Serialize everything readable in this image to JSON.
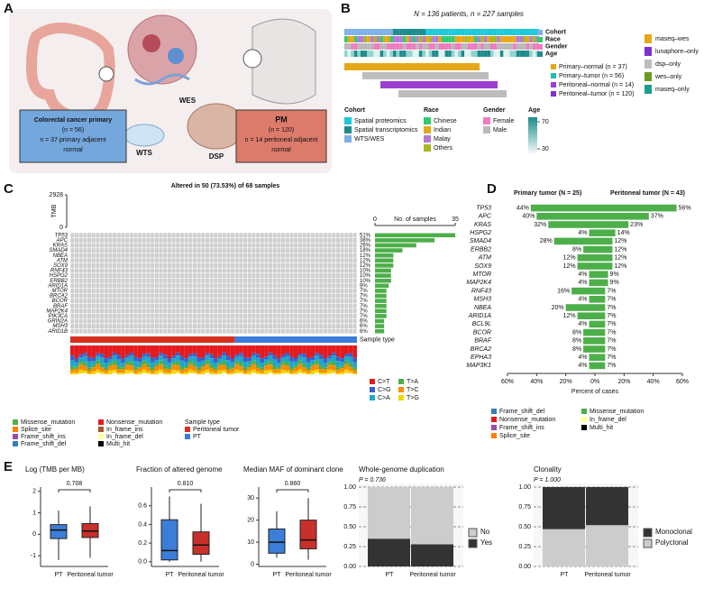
{
  "figure": {
    "A": {
      "label": "A",
      "wes": "WES",
      "wts": "WTS",
      "dsp": "DSP",
      "primary": [
        "Colorectal cancer primary",
        "(n = 56)",
        "n = 37 primary adjacent",
        "normal"
      ],
      "pm": [
        "PM",
        "(n = 120)",
        "n = 14 peritoneal adjacent",
        "normal"
      ]
    },
    "B": {
      "label": "B",
      "title": "N = 136 patients, n = 227 samples",
      "tracks": [
        "Cohort",
        "Race",
        "Gender",
        "Age"
      ],
      "groups": [
        {
          "name": "Primary–normal (n = 37)",
          "color": "#e6a817"
        },
        {
          "name": "Primary–tumor (n = 56)",
          "color": "#1cbfb0"
        },
        {
          "name": "Peritoneal–normal (n = 14)",
          "color": "#9b3fd1"
        },
        {
          "name": "Peritoneal–tumor (n = 120)",
          "color": "#7d2fd0"
        }
      ],
      "assays": [
        {
          "name": "maseq–wes",
          "color": "#e6a817"
        },
        {
          "name": "lunaphore–only",
          "color": "#7d2fd0"
        },
        {
          "name": "dsp–only",
          "color": "#bdbdbd"
        },
        {
          "name": "wes–only",
          "color": "#6e9a1f"
        },
        {
          "name": "maseq–only",
          "color": "#1b9e8f"
        }
      ],
      "legends": [
        {
          "title": "Cohort",
          "items": [
            {
              "name": "Spatial proteomics",
              "color": "#1cc9d9"
            },
            {
              "name": "Spatial transcriptomics",
              "color": "#1e8b8b"
            },
            {
              "name": "WTS/WES",
              "color": "#7fb0e8"
            }
          ]
        },
        {
          "title": "Race",
          "items": [
            {
              "name": "Chinese",
              "color": "#2ecc71"
            },
            {
              "name": "Indian",
              "color": "#e6a817"
            },
            {
              "name": "Malay",
              "color": "#b779d9"
            },
            {
              "name": "Others",
              "color": "#a8b820"
            }
          ]
        },
        {
          "title": "Gender",
          "items": [
            {
              "name": "Female",
              "color": "#f07cc0"
            },
            {
              "name": "Male",
              "color": "#b9b9b9"
            }
          ]
        }
      ],
      "age": {
        "title": "Age",
        "ticks": [
          70,
          30
        ]
      }
    },
    "C": {
      "label": "C",
      "title": "Altered in 50 (73.53%) of 68 samples",
      "tmb_label": "TMB",
      "tmb_ticks": [
        0,
        2928
      ],
      "genes": [
        "TP53",
        "APC",
        "KRAS",
        "SMAD4",
        "NBEA",
        "ATM",
        "SOX9",
        "RNF43",
        "HSPG2",
        "ERBB2",
        "ARID1A",
        "MTOR",
        "BRCA2",
        "BCOR",
        "BRAF",
        "MAP2K4",
        "PIK3CA",
        "GRIN2A",
        "MSH3",
        "ARID1B"
      ],
      "pct_labels": [
        "51%",
        "38%",
        "26%",
        "18%",
        "12%",
        "12%",
        "12%",
        "10%",
        "10%",
        "10%",
        "9%",
        "7%",
        "7%",
        "7%",
        "7%",
        "7%",
        "7%",
        "6%",
        "6%",
        "6%"
      ],
      "counts": [
        35,
        26,
        18,
        12,
        8,
        8,
        8,
        7,
        7,
        7,
        6,
        5,
        5,
        5,
        5,
        5,
        5,
        4,
        4,
        4
      ],
      "count_axis": {
        "title": "No. of samples",
        "ticks": [
          0,
          35
        ]
      },
      "sample_type_label": "Sample type",
      "substitutions": [
        {
          "name": "C>T",
          "color": "#e41a1c"
        },
        {
          "name": "C>G",
          "color": "#3a5fcd"
        },
        {
          "name": "C>A",
          "color": "#1fa6c9"
        },
        {
          "name": "T>A",
          "color": "#4daf4a"
        },
        {
          "name": "T>C",
          "color": "#ff8c00"
        },
        {
          "name": "T>G",
          "color": "#f2d600"
        }
      ],
      "mutation_types": [
        {
          "name": "Missense_mutation",
          "color": "#4daf4a"
        },
        {
          "name": "Splice_site",
          "color": "#ff7f00"
        },
        {
          "name": "Frame_shift_ins",
          "color": "#984ea3"
        },
        {
          "name": "Frame_shift_del",
          "color": "#377eb8"
        },
        {
          "name": "Nonsense_mutation",
          "color": "#e41a1c"
        },
        {
          "name": "In_frame_ins",
          "color": "#a65628"
        },
        {
          "name": "In_frame_del",
          "color": "#ffff99"
        },
        {
          "name": "Multi_hit",
          "color": "#000000"
        }
      ],
      "sample_types": {
        "title": "Sample type",
        "items": [
          {
            "name": "Peritoneal tumor",
            "color": "#d7301f"
          },
          {
            "name": "PT",
            "color": "#3b7dd8"
          }
        ]
      }
    },
    "D": {
      "type": "bar",
      "label": "D",
      "categories": [
        "TP53",
        "APC",
        "KRAS",
        "HSPG2",
        "SMAD4",
        "ERBB2",
        "ATM",
        "SOX9",
        "MTOR",
        "MAP2K4",
        "RNF43",
        "MSH3",
        "NBEA",
        "ARID1A",
        "BCL9L",
        "BCOR",
        "BRAF",
        "BRCA2",
        "EPHA3",
        "MAP3K1"
      ],
      "series": [
        {
          "name": "Primary tumor (N = 25)",
          "color": "#4daf4a",
          "values": [
            44,
            40,
            32,
            4,
            28,
            8,
            12,
            12,
            4,
            4,
            16,
            4,
            20,
            12,
            4,
            8,
            8,
            8,
            4,
            4
          ],
          "value_labels": [
            "44%",
            "40%",
            "32%",
            "4%",
            "28%",
            "8%",
            "12%",
            "12%",
            "4%",
            "4%",
            "16%",
            "4%",
            "20%",
            "12%",
            "4%",
            "8%",
            "8%",
            "8%",
            "4%",
            "4%"
          ]
        },
        {
          "name": "Peritoneal tumor (N = 43)",
          "color": "#4daf4a",
          "values": [
            56,
            37,
            23,
            14,
            12,
            12,
            12,
            12,
            9,
            9,
            7,
            7,
            7,
            7,
            7,
            7,
            7,
            7,
            7,
            7
          ],
          "value_labels": [
            "56%",
            "37%",
            "23%",
            "14%",
            "12%",
            "12%",
            "12%",
            "12%",
            "9%",
            "9%",
            "7%",
            "7%",
            "7%",
            "7%",
            "7%",
            "7%",
            "7%",
            "7%",
            "7%",
            "7%"
          ]
        }
      ],
      "xlabel": "Percent of cases",
      "xlim": [
        -60,
        60
      ],
      "xticks": [
        {
          "value": -60,
          "label": "60%"
        },
        {
          "value": -40,
          "label": "40%"
        },
        {
          "value": -20,
          "label": "20%"
        },
        {
          "value": 0,
          "label": "0%"
        },
        {
          "value": 20,
          "label": "20%"
        },
        {
          "value": 40,
          "label": "40%"
        },
        {
          "value": 60,
          "label": "60%"
        }
      ],
      "legend": [
        {
          "name": "Frame_shift_del",
          "color": "#377eb8"
        },
        {
          "name": "Nonsense_mutation",
          "color": "#e41a1c"
        },
        {
          "name": "Frame_shift_ins",
          "color": "#984ea3"
        },
        {
          "name": "Splice_site",
          "color": "#ff7f00"
        },
        {
          "name": "Missense_mutation",
          "color": "#4daf4a"
        },
        {
          "name": "In_frame_del",
          "color": "#ffff99"
        },
        {
          "name": "Multi_hit",
          "color": "#000000"
        }
      ]
    },
    "E": {
      "label": "E",
      "colors": [
        "#3b7dd8",
        "#c8302b"
      ],
      "boxplots": [
        {
          "title": "Log (TMB per MB)",
          "p": "0.708",
          "categories": [
            "PT",
            "Peritoneal tumor"
          ],
          "boxes": [
            [
              -1.2,
              -0.2,
              0.2,
              0.45,
              1.1
            ],
            [
              -1.1,
              -0.15,
              0.15,
              0.5,
              1.3
            ]
          ],
          "ylim": [
            -1.5,
            2.2
          ],
          "yticks": [
            -1,
            0,
            1,
            2
          ]
        },
        {
          "title": "Fraction of altered genome",
          "p": "0.810",
          "categories": [
            "PT",
            "Peritoneal tumor"
          ],
          "boxes": [
            [
              0,
              0.02,
              0.12,
              0.45,
              0.7
            ],
            [
              0,
              0.08,
              0.18,
              0.32,
              0.62
            ]
          ],
          "ylim": [
            -0.05,
            0.8
          ],
          "yticks": [
            {
              "value": 0,
              "label": "0.0"
            },
            {
              "value": 0.2,
              "label": "0.2"
            },
            {
              "value": 0.4,
              "label": "0.4"
            },
            {
              "value": 0.6,
              "label": "0.6"
            }
          ]
        },
        {
          "title": "Median MAF of dominant clone",
          "p": "0.860",
          "categories": [
            "PT",
            "Peritoneal tumor"
          ],
          "boxes": [
            [
              3,
              5,
              10,
              16,
              24
            ],
            [
              2,
              7,
              11,
              20,
              30
            ]
          ],
          "ylim": [
            -1,
            35
          ],
          "yticks": [
            0,
            10,
            20,
            30
          ]
        }
      ],
      "stacked": [
        {
          "title": "Whole-genome duplication",
          "p": "P = 0.736",
          "categories": [
            "PT",
            "Peritoneal tumor"
          ],
          "series": [
            {
              "name": "Yes",
              "color": "#333333",
              "values": [
                0.35,
                0.28
              ]
            },
            {
              "name": "No",
              "color": "#cccccc",
              "values": [
                0.65,
                0.72
              ]
            }
          ],
          "ylim": [
            0,
            1
          ],
          "yticks": [
            {
              "value": 0,
              "label": "0.00"
            },
            {
              "value": 0.25,
              "label": "0.25"
            },
            {
              "value": 0.5,
              "label": "0.50"
            },
            {
              "value": 0.75,
              "label": "0.75"
            },
            {
              "value": 1,
              "label": "1.00"
            }
          ]
        },
        {
          "title": "Clonality",
          "p": "P = 1.000",
          "categories": [
            "PT",
            "Peritoneal tumor"
          ],
          "series": [
            {
              "name": "Polyclonal",
              "color": "#cccccc",
              "values": [
                0.47,
                0.52
              ]
            },
            {
              "name": "Monoclonal",
              "color": "#333333",
              "values": [
                0.53,
                0.48
              ]
            }
          ],
          "ylim": [
            0,
            1
          ],
          "yticks": [
            {
              "value": 0,
              "label": "0.00"
            },
            {
              "value": 0.25,
              "label": "0.25"
            },
            {
              "value": 0.5,
              "label": "0.50"
            },
            {
              "value": 0.75,
              "label": "0.75"
            },
            {
              "value": 1,
              "label": "1.00"
            }
          ]
        }
      ]
    }
  }
}
